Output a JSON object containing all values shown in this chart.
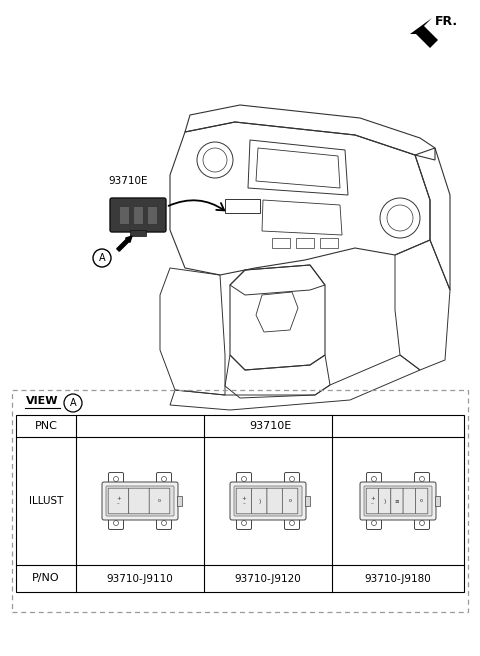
{
  "bg_color": "#ffffff",
  "fr_label": "FR.",
  "part_number_main": "93710E",
  "view_label": "VIEW",
  "circle_label": "A",
  "pnc_label": "PNC",
  "illust_label": "ILLUST",
  "pno_label": "P/NO",
  "part_numbers": [
    "93710-J9110",
    "93710-J9120",
    "93710-J9180"
  ],
  "line_color": "#333333",
  "dash_color": "#888888",
  "switch_buttons_1": 3,
  "switch_buttons_2": 4,
  "switch_buttons_3": 5
}
